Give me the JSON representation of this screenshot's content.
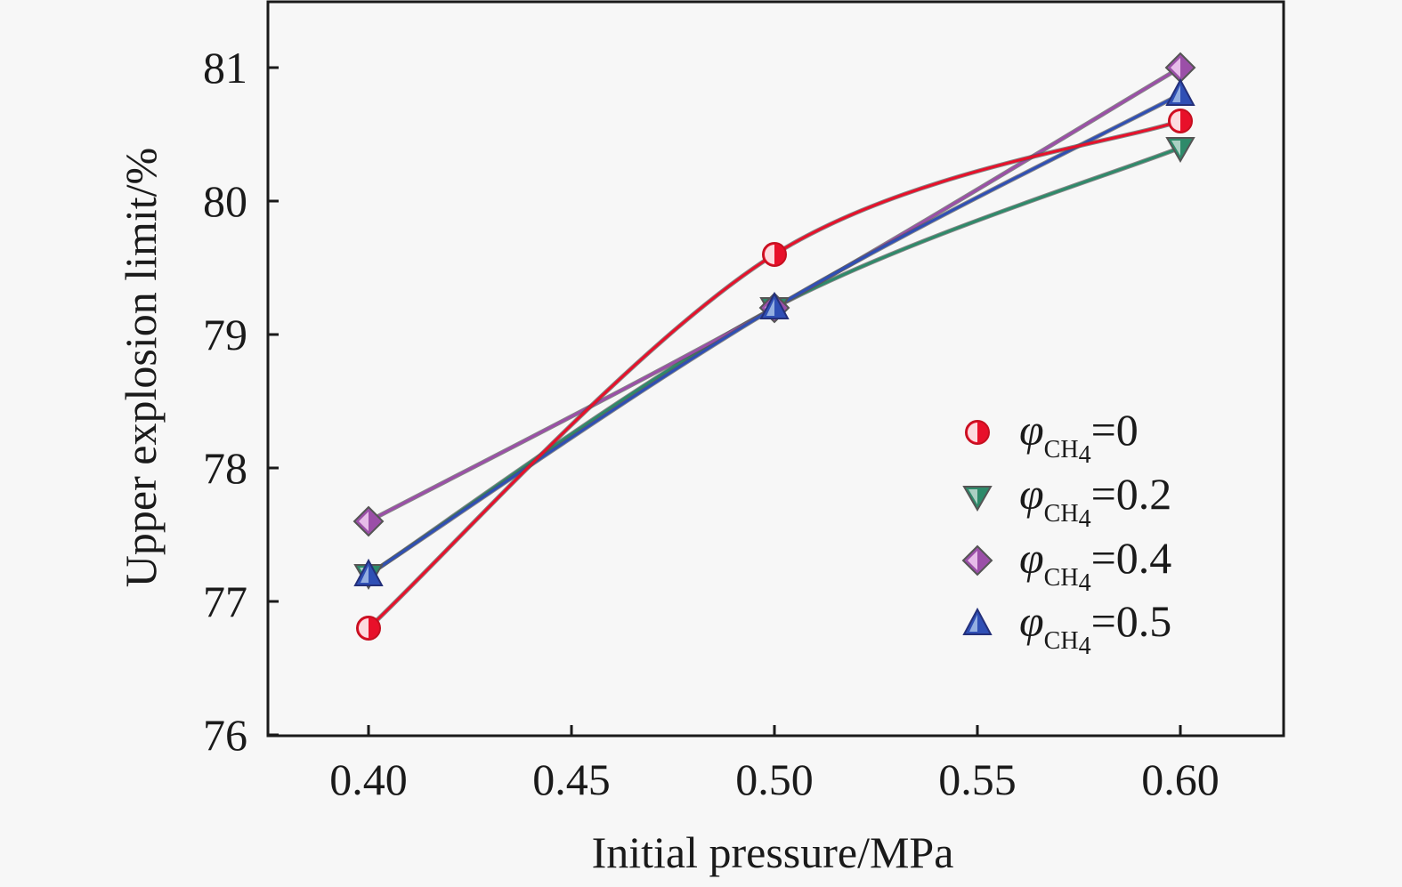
{
  "chart_data": {
    "type": "line",
    "title": "",
    "xlabel": "Initial pressure/MPa",
    "ylabel": "Upper explosion limit/%",
    "xlim": [
      0.375,
      0.625
    ],
    "ylim": [
      76,
      81.5
    ],
    "xticks": [
      0.4,
      0.45,
      0.5,
      0.55,
      0.6
    ],
    "xtick_labels": [
      "0.40",
      "0.45",
      "0.50",
      "0.55",
      "0.60"
    ],
    "yticks": [
      76,
      77,
      78,
      79,
      80,
      81
    ],
    "ytick_labels": [
      "76",
      "77",
      "78",
      "79",
      "80",
      "81"
    ],
    "grid": false,
    "smooth": true,
    "legend_position": "lower-right",
    "x": [
      0.4,
      0.5,
      0.6
    ],
    "series": [
      {
        "name": "φCH4=0",
        "legend_symbol": "φ",
        "legend_sub": "CH",
        "legend_sub2": "4",
        "legend_value": "=0",
        "marker": "circle",
        "color": "#e8102a",
        "values": [
          76.8,
          79.6,
          80.6
        ]
      },
      {
        "name": "φCH4=0.2",
        "legend_symbol": "φ",
        "legend_sub": "CH",
        "legend_sub2": "4",
        "legend_value": "=0.2",
        "marker": "triangle-down",
        "color": "#2e8a6a",
        "values": [
          77.2,
          79.2,
          80.4
        ]
      },
      {
        "name": "φCH4=0.4",
        "legend_symbol": "φ",
        "legend_sub": "CH",
        "legend_sub2": "4",
        "legend_value": "=0.4",
        "marker": "diamond",
        "color": "#9b4fa8",
        "values": [
          77.6,
          79.2,
          81.0
        ]
      },
      {
        "name": "φCH4=0.5",
        "legend_symbol": "φ",
        "legend_sub": "CH",
        "legend_sub2": "4",
        "legend_value": "=0.5",
        "marker": "triangle-up",
        "color": "#2f4fb5",
        "values": [
          77.2,
          79.2,
          80.8
        ]
      }
    ]
  }
}
